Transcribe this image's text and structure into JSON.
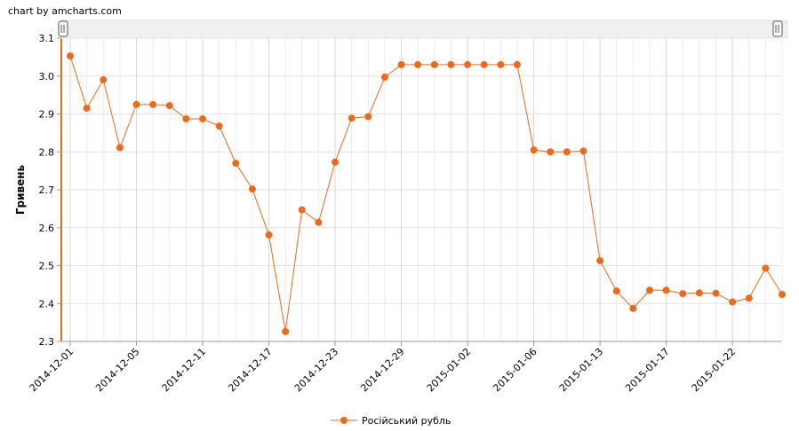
{
  "credit": "chart by amcharts.com",
  "chart_data": {
    "type": "line",
    "ylabel": "Гривень",
    "xlabel": "",
    "ylim": [
      2.3,
      3.1
    ],
    "yticks": [
      "2.3",
      "2.4",
      "2.5",
      "2.6",
      "2.7",
      "2.8",
      "2.9",
      "3.0",
      "3.1"
    ],
    "x_tick_labels": [
      {
        "index": 0,
        "label": "2014-12-01"
      },
      {
        "index": 4,
        "label": "2014-12-05"
      },
      {
        "index": 8,
        "label": "2014-12-11"
      },
      {
        "index": 12,
        "label": "2014-12-17"
      },
      {
        "index": 16,
        "label": "2014-12-23"
      },
      {
        "index": 20,
        "label": "2014-12-29"
      },
      {
        "index": 24,
        "label": "2015-01-02"
      },
      {
        "index": 28,
        "label": "2015-01-06"
      },
      {
        "index": 32,
        "label": "2015-01-13"
      },
      {
        "index": 36,
        "label": "2015-01-17"
      },
      {
        "index": 40,
        "label": "2015-01-22"
      }
    ],
    "series": [
      {
        "name": "Російський рубль",
        "color": "#ee6a1a",
        "values": [
          3.053,
          2.915,
          2.99,
          2.811,
          2.925,
          2.925,
          2.922,
          2.887,
          2.887,
          2.868,
          2.77,
          2.702,
          2.581,
          2.326,
          2.647,
          2.614,
          2.773,
          2.889,
          2.893,
          2.997,
          3.03,
          3.03,
          3.03,
          3.03,
          3.03,
          3.03,
          3.03,
          3.03,
          2.805,
          2.8,
          2.8,
          2.802,
          2.513,
          2.433,
          2.387,
          2.435,
          2.435,
          2.426,
          2.428,
          2.427,
          2.404,
          2.414,
          2.493,
          2.424
        ]
      }
    ],
    "grid": true,
    "legend_position": "bottom",
    "scrollbar": true
  }
}
